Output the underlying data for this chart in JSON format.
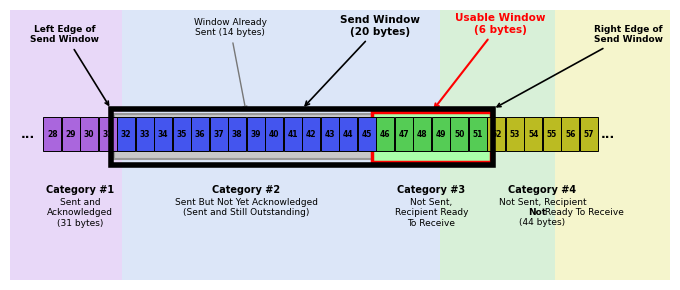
{
  "bg_colors": [
    "#e8d8f8",
    "#dce6f8",
    "#d8f0d8",
    "#f5f5cc"
  ],
  "cat1_color": "#aa66dd",
  "cat2_color": "#4455ee",
  "cat3_color": "#55cc55",
  "cat4_color": "#bbbb22",
  "cells_cat1": [
    28,
    29,
    30,
    31
  ],
  "cells_cat2": [
    32,
    33,
    34,
    35,
    36,
    37,
    38,
    39,
    40,
    41,
    42,
    43,
    44,
    45
  ],
  "cells_cat3": [
    46,
    47,
    48,
    49,
    50,
    51
  ],
  "cells_cat4": [
    52,
    53,
    54,
    55,
    56,
    57
  ],
  "left_edge_label": "Left Edge of\nSend Window",
  "right_edge_label": "Right Edge of\nSend Window",
  "was_label": "Window Already\nSent (14 bytes)",
  "sw_label": "Send Window\n(20 bytes)",
  "uw_label": "Usable Window\n(6 bytes)",
  "cat1_label": "Category #1",
  "cat1_desc1": "Sent and",
  "cat1_desc2": "Acknowledged",
  "cat1_desc3": "(31 bytes)",
  "cat2_label": "Category #2",
  "cat2_desc1": "Sent But Not Yet Acknowledged",
  "cat2_desc2": "(Sent and Still Outstanding)",
  "cat3_label": "Category #3",
  "cat3_desc1": "Not Sent,",
  "cat3_desc2": "Recipient Ready",
  "cat3_desc3": "To Receive",
  "cat4_label": "Category #4",
  "cat4_desc1": "Not Sent, Recipient",
  "cat4_desc2_bold": "Not",
  "cat4_desc2_rest": " Ready To Receive",
  "cat4_desc3": "(44 bytes)"
}
